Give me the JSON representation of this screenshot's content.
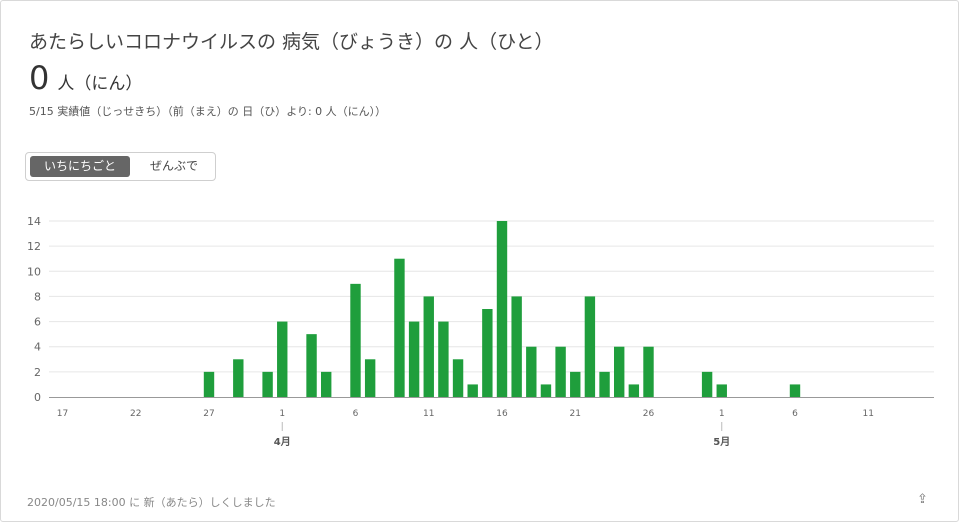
{
  "header": {
    "title": "あたらしいコロナウイルスの 病気（びょうき）の 人（ひと）",
    "count": "0",
    "count_unit": "人（にん）",
    "subtitle": "5/15 実績値（じっせきち）（前（まえ）の 日（ひ）より: 0 人（にん））"
  },
  "toggle": {
    "daily_label": "いちにちごと",
    "total_label": "ぜんぶで"
  },
  "footer": {
    "updated": "2020/05/15 18:00 に 新（あたら）しくしました",
    "share_icon": "share-icon"
  },
  "colors": {
    "bar": "#1f9e3c",
    "grid": "#e6e6e6",
    "axis": "#999999"
  },
  "chart_data": {
    "type": "bar",
    "title": "",
    "xlabel": "",
    "ylabel": "",
    "ylim": [
      0,
      14
    ],
    "y_ticks": [
      0,
      2,
      4,
      6,
      8,
      10,
      12,
      14
    ],
    "start_date": "3/17",
    "dates": [
      "3/17",
      "3/18",
      "3/19",
      "3/20",
      "3/21",
      "3/22",
      "3/23",
      "3/24",
      "3/25",
      "3/26",
      "3/27",
      "3/28",
      "3/29",
      "3/30",
      "3/31",
      "4/1",
      "4/2",
      "4/3",
      "4/4",
      "4/5",
      "4/6",
      "4/7",
      "4/8",
      "4/9",
      "4/10",
      "4/11",
      "4/12",
      "4/13",
      "4/14",
      "4/15",
      "4/16",
      "4/17",
      "4/18",
      "4/19",
      "4/20",
      "4/21",
      "4/22",
      "4/23",
      "4/24",
      "4/25",
      "4/26",
      "4/27",
      "4/28",
      "4/29",
      "4/30",
      "5/1",
      "5/2",
      "5/3",
      "5/4",
      "5/5",
      "5/6",
      "5/7",
      "5/8",
      "5/9",
      "5/10",
      "5/11",
      "5/12",
      "5/13",
      "5/14",
      "5/15"
    ],
    "values": [
      0,
      0,
      0,
      0,
      0,
      0,
      0,
      0,
      0,
      0,
      2,
      0,
      3,
      0,
      2,
      6,
      0,
      5,
      2,
      0,
      9,
      3,
      0,
      11,
      6,
      8,
      6,
      3,
      1,
      7,
      14,
      8,
      4,
      1,
      4,
      2,
      8,
      2,
      4,
      1,
      4,
      0,
      0,
      0,
      2,
      1,
      0,
      0,
      0,
      0,
      1,
      0,
      0,
      0,
      0,
      0,
      0,
      0,
      0,
      0
    ],
    "tick_labels": [
      {
        "index": 0,
        "label": "17"
      },
      {
        "index": 5,
        "label": "22"
      },
      {
        "index": 10,
        "label": "27"
      },
      {
        "index": 15,
        "label": "1"
      },
      {
        "index": 20,
        "label": "6"
      },
      {
        "index": 25,
        "label": "11"
      },
      {
        "index": 30,
        "label": "16"
      },
      {
        "index": 35,
        "label": "21"
      },
      {
        "index": 40,
        "label": "26"
      },
      {
        "index": 45,
        "label": "1"
      },
      {
        "index": 50,
        "label": "6"
      },
      {
        "index": 55,
        "label": "11"
      }
    ],
    "month_labels": [
      {
        "index": 15,
        "label": "4月"
      },
      {
        "index": 45,
        "label": "5月"
      }
    ]
  }
}
